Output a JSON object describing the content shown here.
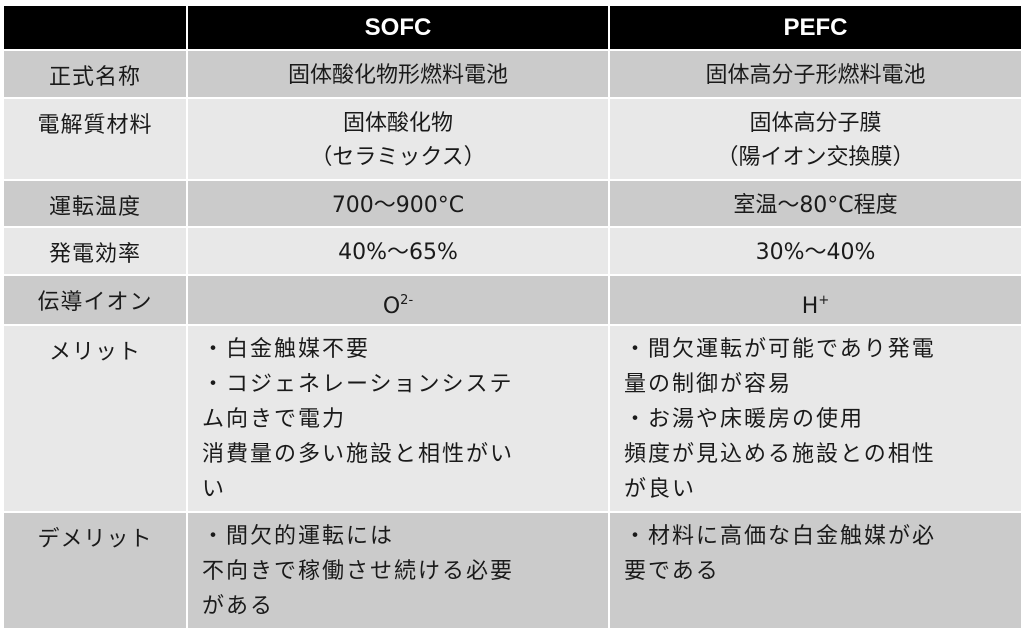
{
  "header": {
    "col0": "",
    "col1": "SOFC",
    "col2": "PEFC"
  },
  "rows": [
    {
      "label": "正式名称",
      "sofc": [
        "固体酸化物形燃料電池"
      ],
      "pefc": [
        "固体高分子形燃料電池"
      ]
    },
    {
      "label": "電解質材料",
      "sofc": [
        "固体酸化物",
        "（セラミックス）"
      ],
      "pefc": [
        "固体高分子膜",
        "（陽イオン交換膜）"
      ]
    },
    {
      "label": "運転温度",
      "sofc": [
        "700～900°C"
      ],
      "pefc": [
        "室温～80°C程度"
      ]
    },
    {
      "label": "発電効率",
      "sofc": [
        "40%～65%"
      ],
      "pefc": [
        "30%～40%"
      ]
    },
    {
      "label": "伝導イオン",
      "sofc_base": "O",
      "sofc_sup": "2-",
      "pefc_base": "H",
      "pefc_sup": "+"
    },
    {
      "label": "メリット",
      "sofc": [
        "・白金触媒不要",
        "・コジェネレーションシステ",
        "ム向きで電力",
        "消費量の多い施設と相性がい",
        "い"
      ],
      "pefc": [
        "・間欠運転が可能であり発電",
        "量の制御が容易",
        "・お湯や床暖房の使用",
        "頻度が見込める施設との相性",
        "が良い"
      ]
    },
    {
      "label": "デメリット",
      "sofc": [
        "・間欠的運転には",
        "不向きで稼働させ続ける必要",
        "がある"
      ],
      "pefc": [
        "・材料に高価な白金触媒が必",
        "要である"
      ]
    }
  ],
  "colors": {
    "header": "#000000",
    "row_dark": "#cbcbcb",
    "row_light": "#e8e8e8"
  }
}
